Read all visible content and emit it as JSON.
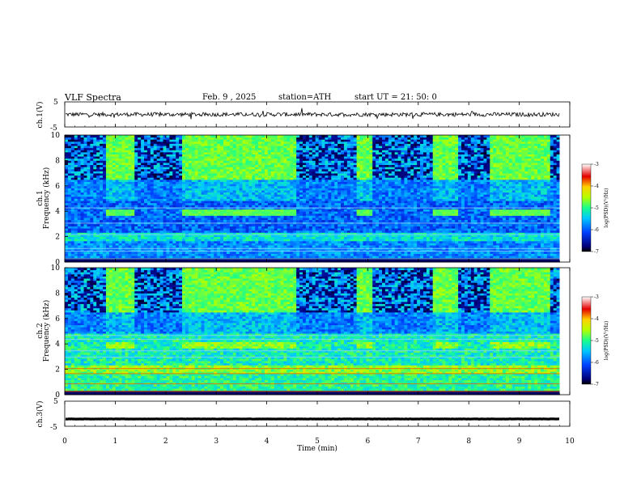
{
  "header": {
    "title": "VLF  Spectra",
    "date": "Feb. 9  , 2025",
    "station": "station=ATH",
    "start": "start  UT  =   21: 50: 0"
  },
  "chart_data": {
    "type": "heatmap",
    "x": {
      "label": "Time  (min)",
      "range": [
        0,
        10
      ],
      "ticks": [
        "0",
        "1",
        "2",
        "3",
        "4",
        "5",
        "6",
        "7",
        "8",
        "9",
        "10"
      ],
      "data_end_min": 9.8
    },
    "panels": [
      {
        "id": "ch1-waveform",
        "type": "line",
        "ylabel": "ch.1(V)",
        "ylim": [
          -5,
          5
        ],
        "yticks": [
          "5",
          "-5"
        ],
        "mean_value": 0,
        "noise_amplitude": 0.8
      },
      {
        "id": "ch1-spectrogram",
        "type": "heatmap",
        "ylabel": "ch.1\nFrequency  (kHz)",
        "ylim": [
          0,
          10
        ],
        "yticks": [
          "0",
          "2",
          "4",
          "6",
          "8",
          "10"
        ],
        "colorbar": {
          "label": "log(PSD)(V²/Hz)",
          "range": [
            -7,
            -3
          ],
          "ticks": [
            "-3",
            "-4",
            "-5",
            "-6",
            "-7"
          ]
        },
        "quiet_intervals_min": [
          [
            0.8,
            1.4
          ],
          [
            2.3,
            4.6
          ],
          [
            5.8,
            6.1
          ],
          [
            7.3,
            7.8
          ],
          [
            8.4,
            9.6
          ]
        ],
        "enhanced_band_khz": [
          3.6,
          4.2
        ]
      },
      {
        "id": "ch2-spectrogram",
        "type": "heatmap",
        "ylabel": "ch.2\nFrequency  (kHz)",
        "ylim": [
          0,
          10
        ],
        "yticks": [
          "0",
          "2",
          "4",
          "6",
          "8",
          "10"
        ],
        "colorbar": {
          "label": "log(PSD)(V²/Hz)",
          "range": [
            -7,
            -3
          ],
          "ticks": [
            "-3",
            "-4",
            "-5",
            "-6",
            "-7"
          ]
        },
        "quiet_intervals_min": [
          [
            0.8,
            1.4
          ],
          [
            2.3,
            4.6
          ],
          [
            5.8,
            6.1
          ],
          [
            7.3,
            7.8
          ],
          [
            8.4,
            9.6
          ]
        ],
        "enhanced_band_khz": [
          3.6,
          4.2
        ]
      },
      {
        "id": "ch3-waveform",
        "type": "line",
        "ylabel": "ch.3(V)",
        "ylim": [
          -5,
          5
        ],
        "yticks": [
          "5",
          "-5"
        ],
        "mean_value": -2.1,
        "noise_amplitude": 0.05
      }
    ]
  }
}
